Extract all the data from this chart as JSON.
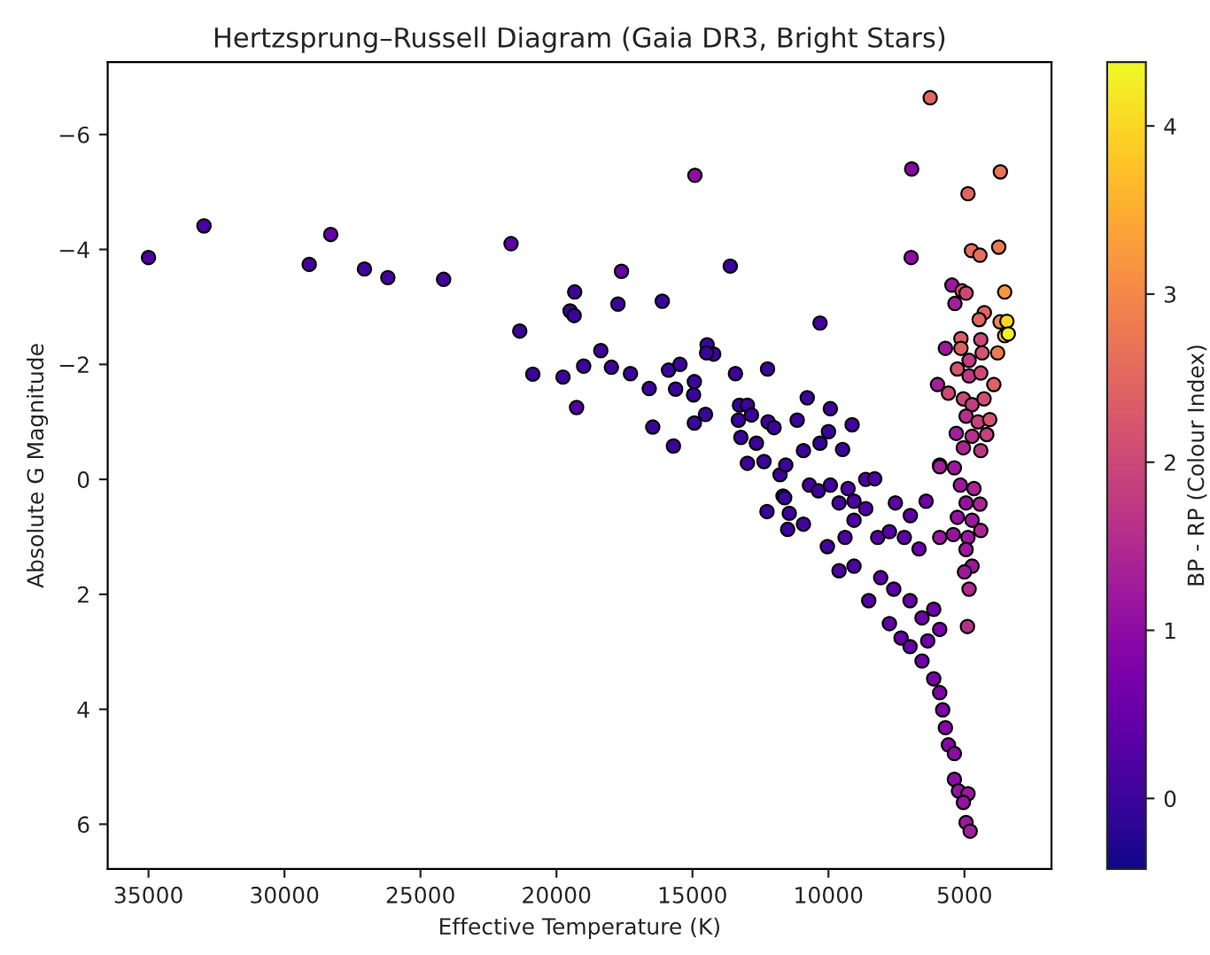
{
  "chart_data": {
    "type": "scatter",
    "title": "Hertzsprung–Russell Diagram (Gaia DR3, Bright Stars)",
    "xlabel": "Effective Temperature (K)",
    "ylabel": "Absolute G Magnitude",
    "clabel": "BP - RP (Colour Index)",
    "marker": "circle",
    "grid": false,
    "xlim": [
      36500,
      1800
    ],
    "xticks": [
      35000,
      30000,
      25000,
      20000,
      15000,
      10000,
      5000
    ],
    "ylim": [
      6.78,
      -7.26
    ],
    "yticks": [
      {
        "value": -6,
        "label": "−6"
      },
      {
        "value": -4,
        "label": "−4"
      },
      {
        "value": -2,
        "label": "−2"
      },
      0,
      2,
      4,
      6
    ],
    "clim": [
      -0.42,
      4.38
    ],
    "cticks": [
      0,
      1,
      2,
      3,
      4
    ],
    "x": [
      35000,
      32960,
      28300,
      29090,
      27060,
      26200,
      24150,
      21670,
      21350,
      20870,
      19760,
      19260,
      19330,
      19500,
      19350,
      19000,
      6260,
      14910,
      6940,
      3680,
      4870,
      4740,
      4430,
      3740,
      6960,
      3520,
      17610,
      13610,
      17740,
      16110,
      10310,
      14460,
      14220,
      14480,
      18370,
      17980,
      17280,
      15880,
      15460,
      16590,
      15620,
      14930,
      14960,
      13420,
      12240,
      16460,
      15700,
      14930,
      14520,
      13270,
      12980,
      12830,
      13310,
      12220,
      12000,
      10780,
      9930,
      9130,
      11150,
      13220,
      12650,
      10310,
      10000,
      9480,
      10920,
      5460,
      5090,
      5350,
      4940,
      4270,
      4460,
      3690,
      3440,
      3520,
      3390,
      5700,
      5130,
      5130,
      4400,
      4350,
      3780,
      5260,
      4830,
      4830,
      4400,
      3920,
      5990,
      5590,
      5040,
      4720,
      4280,
      4940,
      4500,
      4070,
      5300,
      4720,
      4180,
      5040,
      4400,
      5910,
      12260,
      11500,
      10920,
      11440,
      11670,
      11610,
      12980,
      12370,
      11780,
      11570,
      10700,
      10370,
      9930,
      9610,
      9280,
      9060,
      8630,
      8300,
      10040,
      9390,
      9060,
      8630,
      8190,
      7760,
      7540,
      6990,
      6410,
      9610,
      9060,
      8520,
      8080,
      7600,
      7210,
      6670,
      7760,
      7330,
      7000,
      6560,
      6130,
      5910,
      7000,
      6560,
      6350,
      6130,
      5910,
      5800,
      5700,
      5590,
      5370,
      5370,
      5220,
      4870,
      5040,
      4940,
      4790,
      4830,
      4890,
      5910,
      5370,
      5150,
      4650,
      4940,
      4430,
      5260,
      4720,
      5910,
      5410,
      4870,
      4400,
      4940,
      4720,
      5000
    ],
    "values": [
      -3.86,
      -4.41,
      -4.26,
      -3.74,
      -3.66,
      -3.51,
      -3.48,
      -4.1,
      -2.58,
      -1.83,
      -1.78,
      -1.25,
      -3.26,
      -2.93,
      -2.85,
      -1.97,
      -6.64,
      -5.29,
      -5.4,
      -5.35,
      -4.97,
      -3.98,
      -3.9,
      -4.04,
      -3.86,
      -3.26,
      -3.62,
      -3.71,
      -3.05,
      -3.1,
      -2.72,
      -2.34,
      -2.18,
      -2.2,
      -2.24,
      -1.95,
      -1.84,
      -1.9,
      -2.0,
      -1.58,
      -1.57,
      -1.7,
      -1.47,
      -1.84,
      -1.92,
      -0.91,
      -0.58,
      -0.98,
      -1.13,
      -1.29,
      -1.29,
      -1.12,
      -1.03,
      -1.0,
      -0.9,
      -1.42,
      -1.23,
      -0.95,
      -1.03,
      -0.73,
      -0.63,
      -0.63,
      -0.83,
      -0.52,
      -0.5,
      -3.38,
      -3.28,
      -3.06,
      -3.24,
      -2.9,
      -2.78,
      -2.74,
      -2.75,
      -2.5,
      -2.53,
      -2.28,
      -2.45,
      -2.28,
      -2.43,
      -2.2,
      -2.2,
      -1.92,
      -2.07,
      -1.8,
      -1.85,
      -1.65,
      -1.65,
      -1.5,
      -1.4,
      -1.3,
      -1.4,
      -1.1,
      -1.0,
      -1.04,
      -0.8,
      -0.75,
      -0.78,
      -0.55,
      -0.5,
      -0.25,
      0.56,
      0.87,
      0.78,
      0.59,
      0.29,
      0.32,
      -0.28,
      -0.31,
      -0.08,
      -0.25,
      0.1,
      0.2,
      0.1,
      0.41,
      0.16,
      0.38,
      0.0,
      -0.01,
      1.17,
      1.01,
      0.71,
      0.51,
      1.01,
      0.91,
      0.41,
      0.63,
      0.38,
      1.59,
      1.51,
      2.11,
      1.71,
      1.91,
      1.01,
      1.21,
      2.51,
      2.76,
      2.11,
      2.41,
      2.26,
      2.61,
      2.91,
      3.16,
      2.81,
      3.47,
      3.71,
      4.01,
      4.32,
      4.62,
      4.77,
      5.22,
      5.42,
      5.47,
      5.62,
      5.97,
      6.12,
      1.91,
      2.56,
      -0.22,
      -0.2,
      0.1,
      0.16,
      0.41,
      0.43,
      0.66,
      0.71,
      1.01,
      0.96,
      1.01,
      0.89,
      1.22,
      1.51,
      1.61
    ],
    "cvalues": [
      0.2,
      0.15,
      0.5,
      0.05,
      0.05,
      0.05,
      0.05,
      0.4,
      0.0,
      0.0,
      0.0,
      0.2,
      0.0,
      -0.1,
      0.0,
      0.0,
      2.5,
      1.0,
      0.9,
      2.7,
      2.5,
      2.6,
      2.6,
      2.8,
      1.0,
      3.2,
      0.5,
      0.0,
      0.0,
      0.0,
      0.1,
      0.0,
      0.0,
      0.0,
      0.0,
      0.0,
      0.0,
      0.0,
      0.0,
      0.0,
      0.0,
      0.0,
      0.0,
      0.0,
      0.0,
      0.0,
      0.0,
      0.0,
      0.0,
      -0.1,
      0.0,
      0.0,
      0.0,
      0.0,
      0.0,
      0.0,
      0.0,
      0.1,
      0.0,
      0.0,
      0.0,
      -0.1,
      0.0,
      0.0,
      0.0,
      1.2,
      2.2,
      1.3,
      2.0,
      2.5,
      2.5,
      3.0,
      4.0,
      3.8,
      4.3,
      1.2,
      2.3,
      2.4,
      2.0,
      2.2,
      2.8,
      2.2,
      1.8,
      1.7,
      2.0,
      2.4,
      1.3,
      2.0,
      2.0,
      1.8,
      2.1,
      1.6,
      1.9,
      2.2,
      1.3,
      1.6,
      1.9,
      1.4,
      1.7,
      1.3,
      0.0,
      0.0,
      0.1,
      0.0,
      -0.1,
      0.0,
      0.0,
      0.0,
      0.0,
      0.0,
      0.1,
      0.0,
      0.1,
      0.1,
      0.2,
      0.2,
      0.2,
      0.2,
      0.1,
      0.2,
      0.2,
      0.2,
      0.3,
      0.3,
      0.4,
      0.4,
      0.6,
      0.2,
      0.2,
      0.3,
      0.3,
      0.4,
      0.4,
      0.5,
      0.4,
      0.5,
      0.5,
      0.6,
      0.6,
      0.7,
      0.5,
      0.6,
      0.6,
      0.7,
      0.8,
      0.8,
      0.9,
      0.9,
      1.0,
      1.0,
      1.1,
      1.2,
      1.1,
      1.2,
      1.3,
      1.5,
      1.6,
      1.3,
      1.2,
      1.2,
      1.4,
      1.1,
      1.4,
      1.1,
      1.2,
      1.2,
      1.1,
      1.2,
      1.4,
      1.2,
      1.2,
      1.2
    ]
  }
}
